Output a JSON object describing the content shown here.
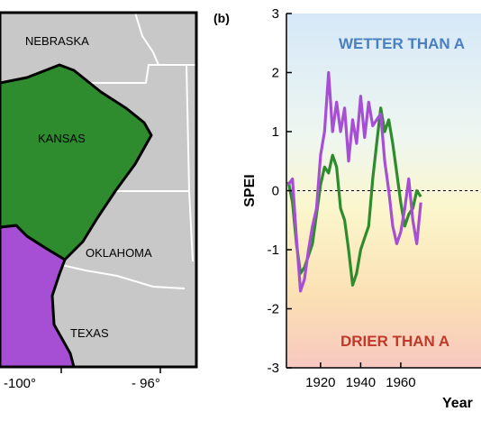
{
  "panel_label": "(b)",
  "map": {
    "states": [
      "NEBRASKA",
      "KANSAS",
      "OKLAHOMA",
      "TEXAS"
    ],
    "lon_ticks": [
      "-100°",
      "- 96°"
    ],
    "colors": {
      "land": "#c8c8c8",
      "region_green": "#2e8b2e",
      "region_purple": "#a64fd4",
      "borders": "#ffffff",
      "outline": "#000000"
    }
  },
  "chart_data": {
    "type": "line",
    "ylabel": "SPEI",
    "xlabel": "Year",
    "xlim": [
      1903,
      2000
    ],
    "ylim": [
      -3,
      3
    ],
    "xticks": [
      1920,
      1940,
      1960
    ],
    "yticks": [
      -3,
      -2,
      -1,
      0,
      1,
      2,
      3
    ],
    "zero_line": "dashed",
    "background": "gradient blue (wet, top) to yellow to red (dry, bottom)",
    "annotations": [
      {
        "text": "WETTER THAN A",
        "color": "#4a7fc0",
        "position": "top"
      },
      {
        "text": "DRIER THAN A",
        "color": "#c0392b",
        "position": "bottom"
      }
    ],
    "series": [
      {
        "color": "#2e8b2e",
        "x": [
          1904,
          1906,
          1908,
          1910,
          1912,
          1914,
          1916,
          1918,
          1920,
          1922,
          1924,
          1926,
          1928,
          1930,
          1932,
          1934,
          1936,
          1938,
          1940,
          1942,
          1944,
          1946,
          1948,
          1950,
          1952,
          1954,
          1956,
          1958,
          1960,
          1962,
          1964,
          1966,
          1968,
          1970
        ],
        "y": [
          0.15,
          -0.2,
          -0.9,
          -1.4,
          -1.3,
          -1.1,
          -0.9,
          -0.4,
          0.1,
          0.4,
          0.3,
          0.6,
          0.4,
          -0.3,
          -0.5,
          -1.0,
          -1.6,
          -1.4,
          -1.0,
          -0.8,
          -0.6,
          0.2,
          0.8,
          1.4,
          1.0,
          1.2,
          0.8,
          0.3,
          -0.2,
          -0.6,
          -0.4,
          -0.3,
          0.0,
          -0.1
        ]
      },
      {
        "color": "#a64fd4",
        "x": [
          1904,
          1906,
          1908,
          1910,
          1912,
          1914,
          1916,
          1918,
          1920,
          1922,
          1924,
          1926,
          1928,
          1930,
          1932,
          1934,
          1936,
          1938,
          1940,
          1942,
          1944,
          1946,
          1948,
          1950,
          1952,
          1954,
          1956,
          1958,
          1960,
          1962,
          1964,
          1966,
          1968,
          1970
        ],
        "y": [
          0.1,
          0.2,
          -0.8,
          -1.7,
          -1.5,
          -1.0,
          -0.6,
          -0.3,
          0.6,
          1.0,
          2.0,
          1.0,
          1.5,
          1.0,
          1.4,
          0.5,
          1.2,
          0.8,
          1.6,
          0.9,
          1.5,
          1.1,
          1.2,
          1.3,
          0.5,
          0.0,
          -0.6,
          -0.9,
          -0.7,
          -0.3,
          0.2,
          -0.5,
          -0.9,
          -0.2
        ]
      }
    ]
  }
}
